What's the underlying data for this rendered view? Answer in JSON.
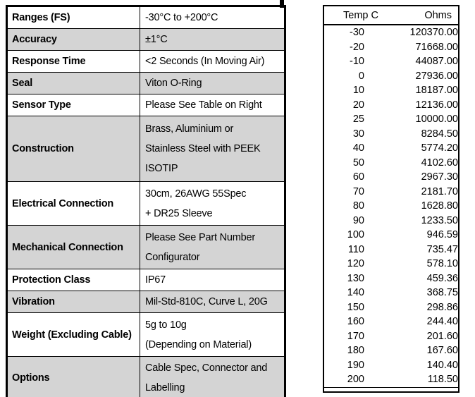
{
  "colors": {
    "shaded_row": "#d4d4d4",
    "border": "#000000",
    "text": "#000000"
  },
  "spec_table": {
    "rows": [
      {
        "label": "Ranges (FS)",
        "value_lines": [
          "-30°C to +200°C"
        ],
        "shaded": false
      },
      {
        "label": "Accuracy",
        "value_lines": [
          "±1°C"
        ],
        "shaded": true
      },
      {
        "label": "Response Time",
        "value_lines": [
          "<2 Seconds (In Moving Air)"
        ],
        "shaded": false
      },
      {
        "label": "Seal",
        "value_lines": [
          "Viton O-Ring"
        ],
        "shaded": true
      },
      {
        "label": "Sensor Type",
        "value_lines": [
          "Please See Table on Right"
        ],
        "shaded": false
      },
      {
        "label": "Construction",
        "value_lines": [
          "Brass, Aluminium or",
          "Stainless Steel with PEEK",
          "ISOTIP"
        ],
        "shaded": true
      },
      {
        "label": "Electrical Connection",
        "value_lines": [
          "30cm, 26AWG 55Spec",
          "+ DR25 Sleeve"
        ],
        "shaded": false
      },
      {
        "label": "Mechanical Connection",
        "value_lines": [
          "Please See Part Number",
          "Configurator"
        ],
        "shaded": true
      },
      {
        "label": "Protection Class",
        "value_lines": [
          "IP67"
        ],
        "shaded": false
      },
      {
        "label": "Vibration",
        "value_lines": [
          "Mil-Std-810C, Curve L, 20G"
        ],
        "shaded": true
      },
      {
        "label": "Weight (Excluding Cable)",
        "value_lines": [
          "5g to 10g",
          "(Depending on Material)"
        ],
        "shaded": false
      },
      {
        "label": "Options",
        "value_lines": [
          "Cable Spec, Connector and",
          "Labelling"
        ],
        "shaded": true
      }
    ]
  },
  "temp_table": {
    "header_temp": "Temp C",
    "header_ohms": "Ohms",
    "rows": [
      {
        "temp": "-30",
        "ohms": "120370.00"
      },
      {
        "temp": "-20",
        "ohms": "71668.00"
      },
      {
        "temp": "-10",
        "ohms": "44087.00"
      },
      {
        "temp": "0",
        "ohms": "27936.00"
      },
      {
        "temp": "10",
        "ohms": "18187.00"
      },
      {
        "temp": "20",
        "ohms": "12136.00"
      },
      {
        "temp": "25",
        "ohms": "10000.00"
      },
      {
        "temp": "30",
        "ohms": "8284.50"
      },
      {
        "temp": "40",
        "ohms": "5774.20"
      },
      {
        "temp": "50",
        "ohms": "4102.60"
      },
      {
        "temp": "60",
        "ohms": "2967.30"
      },
      {
        "temp": "70",
        "ohms": "2181.70"
      },
      {
        "temp": "80",
        "ohms": "1628.80"
      },
      {
        "temp": "90",
        "ohms": "1233.50"
      },
      {
        "temp": "100",
        "ohms": "946.59"
      },
      {
        "temp": "110",
        "ohms": "735.47"
      },
      {
        "temp": "120",
        "ohms": "578.10"
      },
      {
        "temp": "130",
        "ohms": "459.36"
      },
      {
        "temp": "140",
        "ohms": "368.75"
      },
      {
        "temp": "150",
        "ohms": "298.86"
      },
      {
        "temp": "160",
        "ohms": "244.40"
      },
      {
        "temp": "170",
        "ohms": "201.60"
      },
      {
        "temp": "180",
        "ohms": "167.60"
      },
      {
        "temp": "190",
        "ohms": "140.40"
      },
      {
        "temp": "200",
        "ohms": "118.50"
      }
    ]
  }
}
